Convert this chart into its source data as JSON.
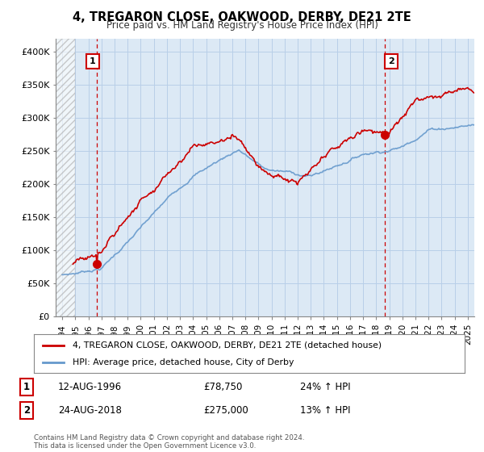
{
  "title": "4, TREGARON CLOSE, OAKWOOD, DERBY, DE21 2TE",
  "subtitle": "Price paid vs. HM Land Registry's House Price Index (HPI)",
  "ylabel_ticks": [
    "£0",
    "£50K",
    "£100K",
    "£150K",
    "£200K",
    "£250K",
    "£300K",
    "£350K",
    "£400K"
  ],
  "ytick_values": [
    0,
    50000,
    100000,
    150000,
    200000,
    250000,
    300000,
    350000,
    400000
  ],
  "ylim": [
    0,
    420000
  ],
  "xlim_start": 1993.5,
  "xlim_end": 2025.5,
  "hpi_color": "#6699cc",
  "price_color": "#cc0000",
  "point1_x": 1996.62,
  "point1_y": 78750,
  "point2_x": 2018.65,
  "point2_y": 275000,
  "legend_line1": "4, TREGARON CLOSE, OAKWOOD, DERBY, DE21 2TE (detached house)",
  "legend_line2": "HPI: Average price, detached house, City of Derby",
  "note1_label": "1",
  "note1_date": "12-AUG-1996",
  "note1_price": "£78,750",
  "note1_hpi": "24% ↑ HPI",
  "note2_label": "2",
  "note2_date": "24-AUG-2018",
  "note2_price": "£275,000",
  "note2_hpi": "13% ↑ HPI",
  "footer": "Contains HM Land Registry data © Crown copyright and database right 2024.\nThis data is licensed under the Open Government Licence v3.0.",
  "background_color": "#ffffff",
  "plot_bg_color": "#dce9f5"
}
